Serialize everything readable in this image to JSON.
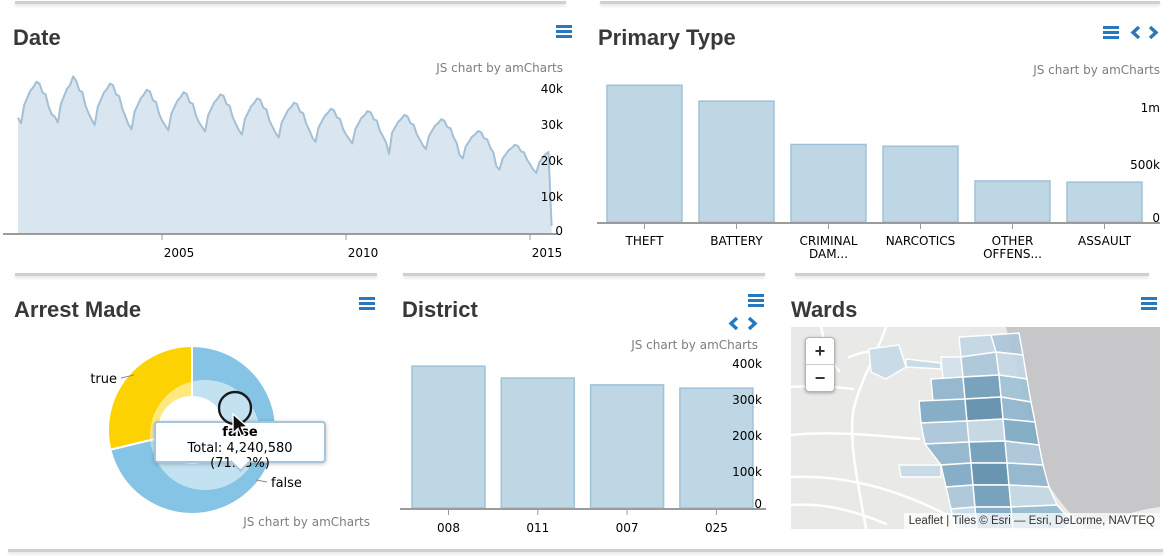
{
  "colors": {
    "accent": "#2878BE",
    "bar_fill": "#BFD6E5",
    "bar_stroke": "#9FC2D8",
    "area_fill": "#D9E6EF",
    "area_stroke": "#A3C0D6",
    "axis": "#9B9B9B",
    "label": "#000000",
    "watermark": "#7D7D7D",
    "pie_false": "#85C4E4",
    "pie_true": "#FCD202",
    "map_land": "#E9E9E7",
    "map_water": "#C7C7C9",
    "map_road": "#FFFFFF",
    "ward_palette": [
      "#D3E1EC",
      "#C2D6E4",
      "#A9C6D9",
      "#8FB4CD",
      "#7DA8C4",
      "#6F9CBA",
      "#5D8DAD",
      "#C5D9E6",
      "#9EC0D4",
      "#92B8CF"
    ]
  },
  "panels": {
    "date": {
      "title": "Date",
      "watermark": "JS chart by amCharts"
    },
    "primary_type": {
      "title": "Primary Type",
      "watermark": "JS chart by amCharts"
    },
    "arrest_made": {
      "title": "Arrest Made",
      "watermark": "JS chart by amCharts",
      "tooltip": {
        "title": "false",
        "detail": "Total: 4,240,580 (71.23%)"
      }
    },
    "district": {
      "title": "District",
      "watermark": "JS chart by amCharts"
    },
    "wards": {
      "title": "Wards",
      "zoom_in_label": "+",
      "zoom_out_label": "−",
      "attribution": "Leaflet | Tiles © Esri — Esri, DeLorme, NAVTEQ"
    }
  },
  "chart_data": [
    {
      "id": "date",
      "type": "area",
      "title": "Date",
      "x_start": "2001-01",
      "x_end": "2015-07",
      "x_tick_labels": [
        "2005",
        "2010",
        "2015"
      ],
      "y_tick_labels": [
        "0",
        "10k",
        "20k",
        "30k",
        "40k"
      ],
      "ylim": [
        0,
        40000
      ],
      "grid": false,
      "values": [
        32000,
        30500,
        35500,
        37500,
        39500,
        40500,
        42000,
        41500,
        39000,
        38500,
        35000,
        33000,
        32300,
        30700,
        35900,
        38000,
        40100,
        41100,
        43500,
        42200,
        39600,
        39100,
        35400,
        33300,
        31500,
        30000,
        35000,
        37000,
        39000,
        40000,
        41500,
        41000,
        38500,
        38000,
        34500,
        32500,
        30200,
        28800,
        33600,
        35500,
        37400,
        38400,
        39800,
        39300,
        36900,
        36400,
        33100,
        31200,
        29900,
        28500,
        33100,
        35000,
        36800,
        37700,
        39100,
        38600,
        36300,
        35900,
        32700,
        30800,
        29500,
        28200,
        32700,
        34500,
        36300,
        37200,
        38500,
        38100,
        35800,
        35400,
        32200,
        30400,
        28600,
        27300,
        31700,
        33400,
        35200,
        36100,
        37400,
        37000,
        34800,
        34300,
        31200,
        29500,
        27800,
        26500,
        30700,
        32400,
        34100,
        34900,
        36200,
        35800,
        33700,
        33300,
        30300,
        28600,
        26500,
        25300,
        29300,
        30900,
        32500,
        33300,
        34500,
        34100,
        32100,
        31700,
        28900,
        27300,
        26100,
        24900,
        28800,
        30400,
        32000,
        32700,
        33900,
        33500,
        31600,
        31200,
        28400,
        26900,
        25200,
        22000,
        27900,
        29400,
        30900,
        31700,
        32800,
        32400,
        30500,
        30100,
        27500,
        26000,
        24400,
        23300,
        26900,
        28400,
        29800,
        30500,
        31600,
        31200,
        29400,
        29100,
        26600,
        25100,
        21700,
        20700,
        24000,
        25300,
        26700,
        27300,
        28300,
        28000,
        26300,
        26000,
        23700,
        22400,
        18500,
        17600,
        20600,
        21800,
        23000,
        23600,
        24500,
        24200,
        22700,
        22400,
        20300,
        19100,
        17600,
        16700,
        19600,
        20800,
        21900,
        22500,
        2000
      ]
    },
    {
      "id": "primary_type",
      "type": "bar",
      "title": "Primary Type",
      "categories": [
        "THEFT",
        "BATTERY",
        "CRIMINAL DAM...",
        "NARCOTICS",
        "OTHER OFFENS...",
        "ASSAULT"
      ],
      "category_label_lines": [
        [
          "THEFT"
        ],
        [
          "BATTERY"
        ],
        [
          "CRIMINAL",
          "DAM..."
        ],
        [
          "NARCOTICS"
        ],
        [
          "OTHER",
          "OFFENS..."
        ],
        [
          "ASSAULT"
        ]
      ],
      "values": [
        1200000,
        1060000,
        680000,
        665000,
        360000,
        350000
      ],
      "y_tick_labels": [
        "0",
        "500k",
        "1m"
      ],
      "ylim": [
        0,
        1000000
      ],
      "grid": false
    },
    {
      "id": "arrest_made",
      "type": "pie",
      "title": "Arrest Made",
      "slices": [
        {
          "label": "false",
          "value": 4240580,
          "percent": 71.23,
          "color": "#85C4E4"
        },
        {
          "label": "true",
          "percent": 28.77,
          "color": "#FCD202"
        }
      ]
    },
    {
      "id": "district",
      "type": "bar",
      "title": "District",
      "categories": [
        "008",
        "011",
        "007",
        "025"
      ],
      "values": [
        394000,
        361000,
        342000,
        333000
      ],
      "y_tick_labels": [
        "0",
        "100k",
        "200k",
        "300k",
        "400k"
      ],
      "ylim": [
        0,
        400000
      ],
      "grid": false
    }
  ]
}
